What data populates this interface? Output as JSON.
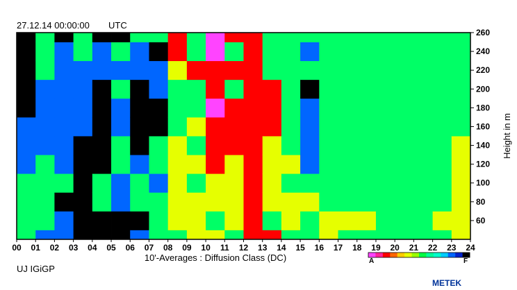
{
  "header": {
    "timestamp": "27.12.14 00:00:00",
    "timezone": "UTC"
  },
  "footer": {
    "station": "UJ IGiGP",
    "brand": "METEK"
  },
  "chart_data": {
    "type": "heatmap",
    "title": "27.12.14 00:00:00  UTC",
    "xlabel": "10'-Averages : Diffusion Class (DC)",
    "ylabel": "Height in m",
    "x_ticks": [
      "00",
      "01",
      "02",
      "03",
      "04",
      "05",
      "06",
      "07",
      "08",
      "09",
      "10",
      "11",
      "12",
      "13",
      "14",
      "15",
      "16",
      "17",
      "18",
      "19",
      "20",
      "21",
      "22",
      "23",
      "24"
    ],
    "y_ticks": [
      60,
      80,
      100,
      120,
      140,
      160,
      180,
      200,
      220,
      240,
      260
    ],
    "xlim": [
      0,
      24
    ],
    "ylim": [
      40,
      260
    ],
    "classes": [
      "A",
      "B",
      "C",
      "D",
      "E",
      "F"
    ],
    "class_colors": {
      "A": "#ff44ff",
      "B": "#ff0000",
      "C": "#e6ff00",
      "D": "#00ff66",
      "E": "#0066ff",
      "F": "#000000"
    },
    "legend": {
      "position": "bottom-right",
      "low_label": "A",
      "high_label": "F"
    },
    "levels_m": [
      40,
      60,
      80,
      100,
      120,
      140,
      160,
      180,
      200,
      220,
      240,
      260
    ],
    "series": [
      {
        "name": "00:00-01:00",
        "classes_by_level": [
          "D",
          "D",
          "D",
          "D",
          "E",
          "E",
          "E",
          "F",
          "F",
          "F",
          "F",
          "F"
        ]
      },
      {
        "name": "01:00-02:00",
        "classes_by_level": [
          "E",
          "D",
          "D",
          "D",
          "D",
          "E",
          "E",
          "E",
          "E",
          "D",
          "D",
          "D"
        ]
      },
      {
        "name": "02:00-03:00",
        "classes_by_level": [
          "E",
          "E",
          "F",
          "D",
          "E",
          "E",
          "E",
          "E",
          "E",
          "E",
          "E",
          "F"
        ]
      },
      {
        "name": "03:00-04:00",
        "classes_by_level": [
          "F",
          "F",
          "F",
          "F",
          "F",
          "F",
          "E",
          "E",
          "E",
          "E",
          "D",
          "D"
        ]
      },
      {
        "name": "04:00-05:00",
        "classes_by_level": [
          "F",
          "F",
          "D",
          "D",
          "F",
          "F",
          "F",
          "F",
          "F",
          "E",
          "E",
          "F"
        ]
      },
      {
        "name": "05:00-06:00",
        "classes_by_level": [
          "F",
          "F",
          "E",
          "E",
          "D",
          "D",
          "E",
          "E",
          "D",
          "E",
          "D",
          "F"
        ]
      },
      {
        "name": "06:00-07:00",
        "classes_by_level": [
          "E",
          "F",
          "D",
          "D",
          "E",
          "F",
          "F",
          "F",
          "F",
          "E",
          "E",
          "D"
        ]
      },
      {
        "name": "07:00-08:00",
        "classes_by_level": [
          "D",
          "D",
          "D",
          "E",
          "D",
          "D",
          "F",
          "F",
          "E",
          "E",
          "F",
          "D"
        ]
      },
      {
        "name": "08:00-09:00",
        "classes_by_level": [
          "D",
          "C",
          "C",
          "C",
          "C",
          "C",
          "D",
          "D",
          "D",
          "C",
          "B",
          "B"
        ]
      },
      {
        "name": "09:00-10:00",
        "classes_by_level": [
          "C",
          "C",
          "C",
          "D",
          "C",
          "D",
          "C",
          "D",
          "D",
          "B",
          "D",
          "D"
        ]
      },
      {
        "name": "10:00-11:00",
        "classes_by_level": [
          "C",
          "D",
          "C",
          "C",
          "B",
          "B",
          "B",
          "A",
          "B",
          "B",
          "A",
          "A"
        ]
      },
      {
        "name": "11:00-12:00",
        "classes_by_level": [
          "D",
          "C",
          "C",
          "C",
          "C",
          "B",
          "B",
          "B",
          "D",
          "B",
          "D",
          "B"
        ]
      },
      {
        "name": "12:00-13:00",
        "classes_by_level": [
          "B",
          "B",
          "B",
          "B",
          "B",
          "B",
          "B",
          "B",
          "B",
          "B",
          "B",
          "B"
        ]
      },
      {
        "name": "13:00-14:00",
        "classes_by_level": [
          "B",
          "D",
          "C",
          "C",
          "C",
          "C",
          "B",
          "B",
          "B",
          "D",
          "D",
          "D"
        ]
      },
      {
        "name": "14:00-15:00",
        "classes_by_level": [
          "D",
          "C",
          "C",
          "D",
          "C",
          "D",
          "D",
          "D",
          "D",
          "D",
          "D",
          "D"
        ]
      },
      {
        "name": "15:00-16:00",
        "classes_by_level": [
          "D",
          "D",
          "C",
          "D",
          "E",
          "E",
          "E",
          "E",
          "F",
          "D",
          "E",
          "D"
        ]
      },
      {
        "name": "16:00-17:00",
        "classes_by_level": [
          "C",
          "C",
          "D",
          "D",
          "D",
          "D",
          "D",
          "D",
          "D",
          "D",
          "D",
          "D"
        ]
      },
      {
        "name": "17:00-18:00",
        "classes_by_level": [
          "D",
          "C",
          "D",
          "D",
          "D",
          "D",
          "D",
          "D",
          "D",
          "D",
          "D",
          "D"
        ]
      },
      {
        "name": "18:00-19:00",
        "classes_by_level": [
          "D",
          "C",
          "D",
          "D",
          "D",
          "D",
          "D",
          "D",
          "D",
          "D",
          "D",
          "D"
        ]
      },
      {
        "name": "19:00-20:00",
        "classes_by_level": [
          "D",
          "D",
          "D",
          "D",
          "D",
          "D",
          "D",
          "D",
          "D",
          "D",
          "D",
          "D"
        ]
      },
      {
        "name": "20:00-21:00",
        "classes_by_level": [
          "D",
          "D",
          "D",
          "D",
          "D",
          "D",
          "D",
          "D",
          "D",
          "D",
          "D",
          "D"
        ]
      },
      {
        "name": "21:00-22:00",
        "classes_by_level": [
          "D",
          "D",
          "D",
          "D",
          "D",
          "D",
          "D",
          "D",
          "D",
          "D",
          "D",
          "D"
        ]
      },
      {
        "name": "22:00-23:00",
        "classes_by_level": [
          "D",
          "C",
          "D",
          "D",
          "D",
          "D",
          "D",
          "D",
          "D",
          "D",
          "D",
          "D"
        ]
      },
      {
        "name": "23:00-24:00",
        "classes_by_level": [
          "C",
          "C",
          "C",
          "C",
          "C",
          "C",
          "D",
          "D",
          "D",
          "D",
          "D",
          "D"
        ]
      }
    ]
  }
}
